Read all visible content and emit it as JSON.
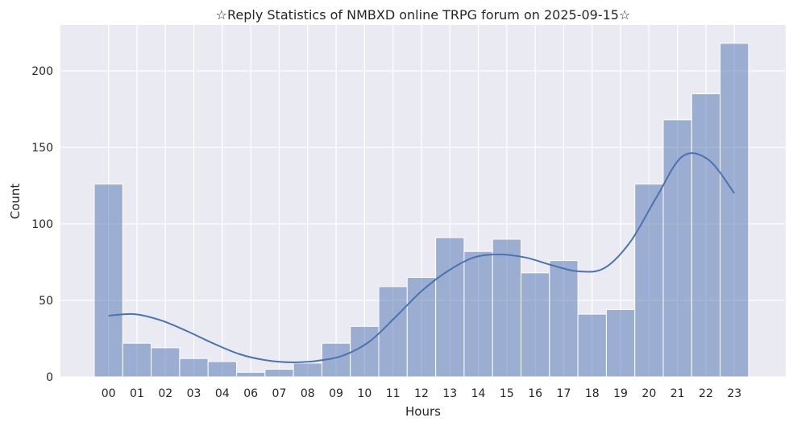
{
  "chart_data": {
    "type": "bar",
    "title": "☆Reply Statistics of NMBXD online TRPG forum on 2025-09-15☆",
    "xlabel": "Hours",
    "ylabel": "Count",
    "categories": [
      "00",
      "01",
      "02",
      "03",
      "04",
      "06",
      "07",
      "08",
      "09",
      "10",
      "11",
      "12",
      "13",
      "14",
      "15",
      "16",
      "17",
      "18",
      "19",
      "20",
      "21",
      "22",
      "23"
    ],
    "values": [
      126,
      22,
      19,
      12,
      10,
      3,
      5,
      9,
      22,
      33,
      59,
      65,
      91,
      82,
      90,
      68,
      76,
      41,
      44,
      126,
      168,
      185,
      218
    ],
    "kde": [
      40,
      41,
      37,
      30,
      22,
      15,
      11,
      9.5,
      10.5,
      14,
      23,
      39,
      56,
      69,
      78,
      80,
      78,
      73,
      69,
      71,
      88,
      117,
      144,
      142,
      120
    ],
    "yticks": [
      0,
      50,
      100,
      150,
      200
    ],
    "ylim": [
      0,
      230
    ],
    "grid": true,
    "colors": {
      "background": "#EAEAF2",
      "bar_fill": "#4C72B0",
      "bar_opacity": 0.5,
      "kde_line": "#4C72B0",
      "grid": "#FFFFFF"
    }
  }
}
